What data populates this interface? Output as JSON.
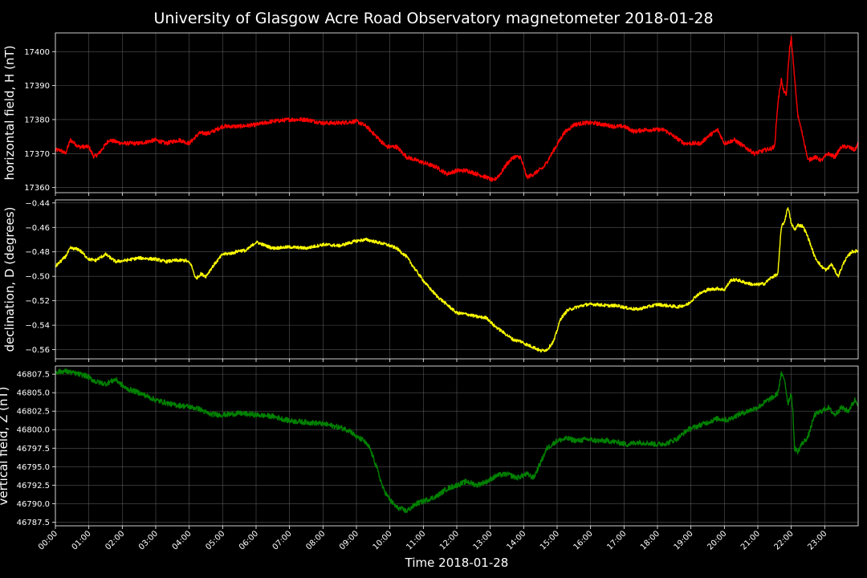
{
  "chart_data": {
    "type": "line",
    "title": "University of Glasgow Acre Road Observatory magnetometer 2018-01-28",
    "xlabel": "Time 2018-01-28",
    "x_ticks": [
      "00:00",
      "01:00",
      "02:00",
      "03:00",
      "04:00",
      "05:00",
      "06:00",
      "07:00",
      "08:00",
      "09:00",
      "10:00",
      "11:00",
      "12:00",
      "13:00",
      "14:00",
      "15:00",
      "16:00",
      "17:00",
      "18:00",
      "19:00",
      "20:00",
      "21:00",
      "22:00",
      "23:00"
    ],
    "xlim": [
      0,
      24
    ],
    "grid": true,
    "panels": [
      {
        "ylabel": "horizontal field, H (nT)",
        "color": "#ff0000",
        "ylim": [
          17358.5,
          17405.5
        ],
        "y_ticks": [
          "17360",
          "17370",
          "17380",
          "17390",
          "17400"
        ],
        "y_tick_values": [
          17360,
          17370,
          17380,
          17390,
          17400
        ],
        "noise": 0.6,
        "series": [
          {
            "x": [
              0,
              0.15,
              0.3,
              0.45,
              0.7,
              1.0,
              1.15,
              1.3,
              1.6,
              2.0,
              2.5,
              3.0,
              3.3,
              3.7,
              4.0,
              4.3,
              4.6,
              5.0,
              5.5,
              6.0,
              6.5,
              7.0,
              7.5,
              8.0,
              8.5,
              9.0,
              9.3,
              9.6,
              9.9,
              10.2,
              10.5,
              10.8,
              11.1,
              11.4,
              11.7,
              12.0,
              12.3,
              12.6,
              12.9,
              13.1,
              13.3,
              13.5,
              13.7,
              13.9,
              14.1,
              14.3,
              14.6,
              14.9,
              15.2,
              15.5,
              15.8,
              16.1,
              16.4,
              16.7,
              17.0,
              17.3,
              17.6,
              17.9,
              18.2,
              18.5,
              18.8,
              19.0,
              19.3,
              19.5,
              19.8,
              20.0,
              20.3,
              20.6,
              20.9,
              21.2,
              21.4,
              21.5,
              21.6,
              21.7,
              21.75,
              21.85,
              21.95,
              22.0,
              22.1,
              22.2,
              22.35,
              22.5,
              22.7,
              22.9,
              23.1,
              23.3,
              23.5,
              23.7,
              23.9,
              24.0
            ],
            "y": [
              17371,
              17371,
              17370,
              17374,
              17372,
              17372,
              17369,
              17370,
              17374,
              17373,
              17373,
              17374,
              17373,
              17374,
              17373,
              17376,
              17376,
              17378,
              17378,
              17378.5,
              17379.5,
              17380,
              17380,
              17379,
              17379,
              17379.5,
              17378,
              17375,
              17372,
              17372,
              17369,
              17368,
              17367,
              17366,
              17364,
              17365,
              17365,
              17364,
              17363,
              17362,
              17364,
              17367,
              17369,
              17369,
              17363,
              17364,
              17366,
              17371,
              17376,
              17378.5,
              17379,
              17379,
              17378.5,
              17378,
              17378,
              17376.5,
              17377,
              17377,
              17377,
              17375,
              17373,
              17373,
              17373,
              17375,
              17377,
              17373,
              17374,
              17372,
              17370,
              17371,
              17371.5,
              17372,
              17385,
              17392,
              17389,
              17387,
              17401,
              17404,
              17392,
              17381,
              17375,
              17368,
              17369,
              17368,
              17370,
              17369,
              17372,
              17372,
              17371,
              17373
            ]
          }
        ]
      },
      {
        "ylabel": "declination, D (degrees)",
        "color": "#ffff00",
        "ylim": [
          -0.5675,
          -0.4375
        ],
        "y_ticks": [
          "−0.56",
          "−0.54",
          "−0.52",
          "−0.50",
          "−0.48",
          "−0.46",
          "−0.44"
        ],
        "y_tick_values": [
          -0.56,
          -0.54,
          -0.52,
          -0.5,
          -0.48,
          -0.46,
          -0.44
        ],
        "noise": 0.0013,
        "series": [
          {
            "x": [
              0,
              0.15,
              0.3,
              0.45,
              0.7,
              1.0,
              1.2,
              1.5,
              1.8,
              2.1,
              2.5,
              3.0,
              3.3,
              3.6,
              3.9,
              4.05,
              4.2,
              4.35,
              4.5,
              4.7,
              5.0,
              5.3,
              5.5,
              5.7,
              6.0,
              6.5,
              7.0,
              7.5,
              8.0,
              8.5,
              9.0,
              9.3,
              9.6,
              9.9,
              10.2,
              10.5,
              10.8,
              11.1,
              11.4,
              11.7,
              12.0,
              12.3,
              12.6,
              12.9,
              13.1,
              13.3,
              13.5,
              13.7,
              13.9,
              14.1,
              14.3,
              14.5,
              14.7,
              14.9,
              15.1,
              15.3,
              15.6,
              15.9,
              16.2,
              16.5,
              16.8,
              17.1,
              17.4,
              17.7,
              18.0,
              18.3,
              18.6,
              18.9,
              19.2,
              19.5,
              19.8,
              20.0,
              20.2,
              20.4,
              20.6,
              20.9,
              21.2,
              21.4,
              21.55,
              21.6,
              21.7,
              21.8,
              21.9,
              22.0,
              22.1,
              22.2,
              22.35,
              22.5,
              22.7,
              22.9,
              23.05,
              23.2,
              23.4,
              23.6,
              23.8,
              24.0
            ],
            "y": [
              -0.492,
              -0.488,
              -0.484,
              -0.477,
              -0.478,
              -0.486,
              -0.487,
              -0.482,
              -0.488,
              -0.487,
              -0.485,
              -0.486,
              -0.488,
              -0.487,
              -0.487,
              -0.49,
              -0.502,
              -0.498,
              -0.5,
              -0.492,
              -0.482,
              -0.481,
              -0.479,
              -0.479,
              -0.472,
              -0.477,
              -0.476,
              -0.477,
              -0.474,
              -0.475,
              -0.471,
              -0.47,
              -0.472,
              -0.474,
              -0.477,
              -0.484,
              -0.496,
              -0.507,
              -0.516,
              -0.523,
              -0.53,
              -0.531,
              -0.533,
              -0.534,
              -0.54,
              -0.544,
              -0.548,
              -0.552,
              -0.553,
              -0.556,
              -0.558,
              -0.561,
              -0.56,
              -0.553,
              -0.535,
              -0.528,
              -0.525,
              -0.523,
              -0.523,
              -0.524,
              -0.524,
              -0.526,
              -0.527,
              -0.525,
              -0.523,
              -0.524,
              -0.525,
              -0.523,
              -0.515,
              -0.511,
              -0.51,
              -0.511,
              -0.503,
              -0.503,
              -0.505,
              -0.507,
              -0.506,
              -0.501,
              -0.499,
              -0.498,
              -0.46,
              -0.455,
              -0.443,
              -0.457,
              -0.462,
              -0.458,
              -0.459,
              -0.468,
              -0.484,
              -0.492,
              -0.495,
              -0.49,
              -0.5,
              -0.487,
              -0.48,
              -0.479
            ]
          }
        ]
      },
      {
        "ylabel": "vertical field, Z (nT)",
        "color": "#008000",
        "ylim": [
          46787.0,
          46808.6
        ],
        "y_ticks": [
          "46787.5",
          "46790.0",
          "46792.5",
          "46795.0",
          "46797.5",
          "46800.0",
          "46802.5",
          "46805.0",
          "46807.5"
        ],
        "y_tick_values": [
          46787.5,
          46790.0,
          46792.5,
          46795.0,
          46797.5,
          46800.0,
          46802.5,
          46805.0,
          46807.5
        ],
        "noise": 0.35,
        "series": [
          {
            "x": [
              0,
              0.3,
              0.6,
              0.9,
              1.2,
              1.5,
              1.8,
              2.1,
              2.5,
              3.0,
              3.5,
              4.0,
              4.3,
              4.6,
              5.0,
              5.5,
              6.0,
              6.5,
              7.0,
              7.5,
              8.0,
              8.5,
              8.8,
              9.0,
              9.2,
              9.4,
              9.6,
              9.8,
              10.0,
              10.2,
              10.5,
              10.8,
              11.1,
              11.4,
              11.7,
              12.0,
              12.3,
              12.6,
              12.9,
              13.2,
              13.5,
              13.8,
              14.1,
              14.3,
              14.5,
              14.7,
              15.0,
              15.3,
              15.6,
              15.9,
              16.2,
              16.5,
              16.8,
              17.1,
              17.4,
              17.7,
              18.0,
              18.3,
              18.6,
              18.9,
              19.2,
              19.5,
              19.8,
              20.1,
              20.4,
              20.7,
              21.0,
              21.3,
              21.5,
              21.6,
              21.7,
              21.8,
              21.9,
              22.0,
              22.05,
              22.1,
              22.2,
              22.3,
              22.5,
              22.7,
              22.9,
              23.1,
              23.3,
              23.5,
              23.7,
              23.9,
              24.0
            ],
            "y": [
              46807.8,
              46807.9,
              46807.6,
              46807.3,
              46806.5,
              46806.2,
              46806.8,
              46805.6,
              46805.0,
              46804.0,
              46803.4,
              46803.1,
              46802.8,
              46802.1,
              46802.0,
              46802.2,
              46802.0,
              46801.8,
              46801.2,
              46801.0,
              46800.8,
              46800.3,
              46799.9,
              46799.0,
              46798.6,
              46797.5,
              46795.0,
              46792.0,
              46790.5,
              46789.5,
              46789.0,
              46790.0,
              46790.5,
              46791.0,
              46792.0,
              46792.5,
              46793.0,
              46792.5,
              46793.0,
              46793.8,
              46794.0,
              46793.5,
              46794.0,
              46793.5,
              46795.5,
              46797.5,
              46798.5,
              46798.8,
              46798.5,
              46798.7,
              46798.5,
              46798.5,
              46798.3,
              46798.0,
              46798.3,
              46798.2,
              46798.0,
              46798.2,
              46798.8,
              46800.0,
              46800.5,
              46801.0,
              46801.5,
              46801.3,
              46802.0,
              46802.5,
              46803.0,
              46804.0,
              46804.5,
              46805.0,
              46807.5,
              46806.8,
              46803.5,
              46805.0,
              46802.0,
              46797.5,
              46797.0,
              46798.0,
              46799.0,
              46802.0,
              46802.5,
              46803.0,
              46802.0,
              46803.0,
              46802.5,
              46804.0,
              46803.5
            ]
          }
        ]
      }
    ]
  }
}
